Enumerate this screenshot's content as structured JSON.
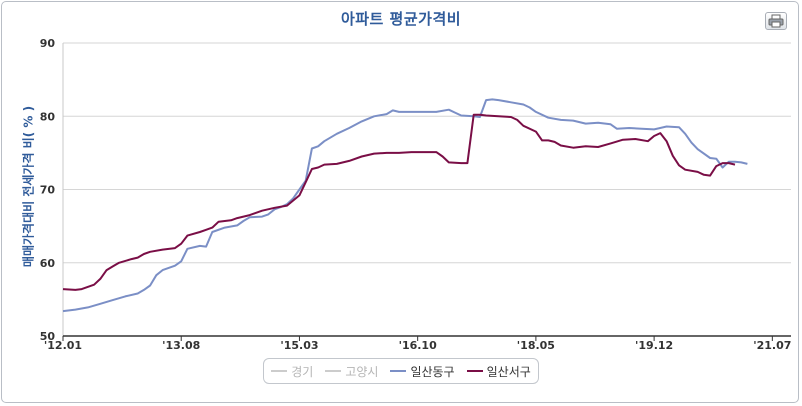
{
  "chart_data": {
    "type": "line",
    "title": "아파트 평균가격비",
    "ylabel": "매매가격대비 전세가격 비( % )",
    "xlabel": "",
    "ylim": [
      50,
      90
    ],
    "yticks": [
      50,
      60,
      70,
      80,
      90
    ],
    "grid": true,
    "legend_position": "bottom",
    "x_ticks": [
      "'12.01",
      "'13.08",
      "'15.03",
      "'16.10",
      "'18.05",
      "'19.12",
      "'21.07"
    ],
    "x_tick_months": [
      0,
      19,
      38,
      57,
      76,
      95,
      114
    ],
    "x_end_month": 117,
    "series": [
      {
        "name": "경기",
        "color": "#cccccc",
        "visible": false,
        "points": []
      },
      {
        "name": "고양시",
        "color": "#cccccc",
        "visible": false,
        "points": []
      },
      {
        "name": "일산동구",
        "color": "#7b8fc6",
        "visible": true,
        "points": [
          [
            0,
            53.4
          ],
          [
            2,
            53.6
          ],
          [
            4,
            53.9
          ],
          [
            6,
            54.4
          ],
          [
            8,
            54.9
          ],
          [
            10,
            55.4
          ],
          [
            12,
            55.8
          ],
          [
            13,
            56.3
          ],
          [
            14,
            56.9
          ],
          [
            15,
            58.3
          ],
          [
            16,
            59.0
          ],
          [
            18,
            59.6
          ],
          [
            19,
            60.2
          ],
          [
            20,
            61.9
          ],
          [
            22,
            62.3
          ],
          [
            23,
            62.2
          ],
          [
            24,
            64.2
          ],
          [
            26,
            64.8
          ],
          [
            28,
            65.1
          ],
          [
            29,
            65.7
          ],
          [
            30,
            66.2
          ],
          [
            32,
            66.3
          ],
          [
            33,
            66.6
          ],
          [
            34,
            67.3
          ],
          [
            35,
            67.6
          ],
          [
            36,
            68.0
          ],
          [
            37,
            68.8
          ],
          [
            38,
            70.0
          ],
          [
            39,
            71.2
          ],
          [
            40,
            75.6
          ],
          [
            41,
            75.9
          ],
          [
            42,
            76.6
          ],
          [
            44,
            77.6
          ],
          [
            46,
            78.4
          ],
          [
            48,
            79.3
          ],
          [
            50,
            80.0
          ],
          [
            52,
            80.3
          ],
          [
            53,
            80.8
          ],
          [
            54,
            80.6
          ],
          [
            56,
            80.6
          ],
          [
            58,
            80.6
          ],
          [
            60,
            80.6
          ],
          [
            62,
            80.9
          ],
          [
            63,
            80.5
          ],
          [
            64,
            80.1
          ],
          [
            66,
            80.0
          ],
          [
            67,
            79.9
          ],
          [
            68,
            82.2
          ],
          [
            69,
            82.3
          ],
          [
            70,
            82.2
          ],
          [
            72,
            81.9
          ],
          [
            74,
            81.6
          ],
          [
            75,
            81.2
          ],
          [
            76,
            80.6
          ],
          [
            78,
            79.8
          ],
          [
            80,
            79.5
          ],
          [
            82,
            79.4
          ],
          [
            84,
            79.0
          ],
          [
            86,
            79.1
          ],
          [
            88,
            78.9
          ],
          [
            89,
            78.3
          ],
          [
            91,
            78.4
          ],
          [
            93,
            78.3
          ],
          [
            95,
            78.2
          ],
          [
            97,
            78.6
          ],
          [
            99,
            78.5
          ],
          [
            100,
            77.6
          ],
          [
            101,
            76.4
          ],
          [
            102,
            75.5
          ],
          [
            104,
            74.3
          ],
          [
            105,
            74.2
          ],
          [
            106,
            73.0
          ],
          [
            107,
            73.8
          ],
          [
            108,
            73.8
          ],
          [
            109,
            73.7
          ],
          [
            110,
            73.5
          ]
        ]
      },
      {
        "name": "일산서구",
        "color": "#7a0e46",
        "visible": true,
        "points": [
          [
            0,
            56.4
          ],
          [
            2,
            56.3
          ],
          [
            3,
            56.4
          ],
          [
            5,
            57.0
          ],
          [
            6,
            57.8
          ],
          [
            7,
            59.0
          ],
          [
            8,
            59.5
          ],
          [
            9,
            60.0
          ],
          [
            11,
            60.5
          ],
          [
            12,
            60.7
          ],
          [
            13,
            61.2
          ],
          [
            14,
            61.5
          ],
          [
            16,
            61.8
          ],
          [
            18,
            62.0
          ],
          [
            19,
            62.6
          ],
          [
            20,
            63.7
          ],
          [
            22,
            64.2
          ],
          [
            23,
            64.5
          ],
          [
            24,
            64.8
          ],
          [
            25,
            65.6
          ],
          [
            27,
            65.8
          ],
          [
            28,
            66.1
          ],
          [
            30,
            66.5
          ],
          [
            32,
            67.1
          ],
          [
            34,
            67.5
          ],
          [
            36,
            67.8
          ],
          [
            37,
            68.5
          ],
          [
            38,
            69.2
          ],
          [
            39,
            71.0
          ],
          [
            40,
            72.8
          ],
          [
            41,
            73.0
          ],
          [
            42,
            73.4
          ],
          [
            44,
            73.5
          ],
          [
            46,
            73.9
          ],
          [
            48,
            74.5
          ],
          [
            50,
            74.9
          ],
          [
            52,
            75.0
          ],
          [
            54,
            75.0
          ],
          [
            56,
            75.1
          ],
          [
            58,
            75.1
          ],
          [
            60,
            75.1
          ],
          [
            61,
            74.5
          ],
          [
            62,
            73.7
          ],
          [
            64,
            73.6
          ],
          [
            65,
            73.6
          ],
          [
            66,
            80.2
          ],
          [
            67,
            80.2
          ],
          [
            68,
            80.1
          ],
          [
            70,
            80.0
          ],
          [
            72,
            79.9
          ],
          [
            73,
            79.5
          ],
          [
            74,
            78.7
          ],
          [
            76,
            77.9
          ],
          [
            77,
            76.7
          ],
          [
            78,
            76.7
          ],
          [
            79,
            76.5
          ],
          [
            80,
            76.0
          ],
          [
            82,
            75.7
          ],
          [
            84,
            75.9
          ],
          [
            86,
            75.8
          ],
          [
            88,
            76.3
          ],
          [
            90,
            76.8
          ],
          [
            92,
            76.9
          ],
          [
            94,
            76.6
          ],
          [
            95,
            77.3
          ],
          [
            96,
            77.7
          ],
          [
            97,
            76.6
          ],
          [
            98,
            74.6
          ],
          [
            99,
            73.3
          ],
          [
            100,
            72.7
          ],
          [
            102,
            72.4
          ],
          [
            103,
            72.0
          ],
          [
            104,
            71.9
          ],
          [
            105,
            73.2
          ],
          [
            106,
            73.6
          ],
          [
            107,
            73.6
          ],
          [
            108,
            73.4
          ]
        ]
      }
    ]
  },
  "legend": {
    "items": [
      "경기",
      "고양시",
      "일산동구",
      "일산서구"
    ]
  },
  "print_icon": "printer-icon"
}
